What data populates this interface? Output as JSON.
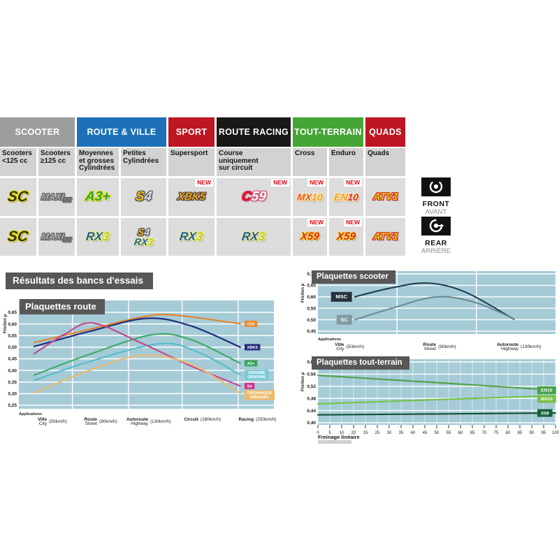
{
  "page": {
    "background": "#ffffff",
    "results_banner": "Résultats des bancs d'essais"
  },
  "colors": {
    "band_gray": "#9d9d9c",
    "band_blue": "#1d71b8",
    "band_red": "#be1622",
    "band_black": "#181816",
    "band_green": "#45a535",
    "subheader_bg": "#d2d2d2",
    "cell_bg": "#dcdcdc",
    "chart_bg": "#a5cbd7",
    "title_box": "#575756",
    "new_red": "#e30613"
  },
  "table": {
    "new_label": "NEW",
    "categories": [
      {
        "label": "SCOOTER",
        "color_key": "band_gray",
        "span": 2
      },
      {
        "label": "ROUTE & VILLE",
        "color_key": "band_blue",
        "span": 2
      },
      {
        "label": "SPORT",
        "color_key": "band_red",
        "span": 1
      },
      {
        "label": "ROUTE RACING",
        "color_key": "band_black",
        "span": 1
      },
      {
        "label": "TOUT-TERRAIN",
        "color_key": "band_green",
        "span": 2
      },
      {
        "label": "QUADS",
        "color_key": "band_red",
        "span": 1
      }
    ],
    "subheaders": [
      "Scooters\n<125 cc",
      "Scooters\n≥125 cc",
      "Moyennes\net grosses\nCylindrées",
      "Petites\nCylindrées",
      "Supersport",
      "Course\nuniquement\nsur circuit",
      "Cross",
      "Enduro",
      "Quads"
    ],
    "rows": [
      {
        "position": "front",
        "cells": [
          {
            "new": false,
            "logos": [
              {
                "style": "sc",
                "halo": "#e6de00",
                "parts": [
                  {
                    "t": "SC",
                    "c": "#33331c"
                  }
                ]
              }
            ]
          },
          {
            "new": false,
            "logos": [
              {
                "style": "maxisc",
                "halo": "#5a5a5a",
                "parts": [
                  {
                    "t": "MAXI",
                    "c": "#b0b0b0"
                  },
                  {
                    "t": "SC",
                    "c": "#8f8f8f"
                  }
                ]
              }
            ]
          },
          {
            "new": false,
            "logos": [
              {
                "style": "a3",
                "halo": "#ece400",
                "parts": [
                  {
                    "t": "A3+",
                    "c": "#2f9e41"
                  }
                ]
              }
            ]
          },
          {
            "new": false,
            "logos": [
              {
                "style": "s4",
                "halo": "#4a4a55",
                "parts": [
                  {
                    "t": "S",
                    "c": "#f2b919"
                  },
                  {
                    "t": "4",
                    "c": "#dfe0ea"
                  }
                ]
              }
            ]
          },
          {
            "new": true,
            "logos": [
              {
                "style": "xbk5",
                "halo": "#403f3d",
                "parts": [
                  {
                    "t": "XBK5",
                    "c": "#f2a51c"
                  }
                ]
              }
            ]
          },
          {
            "new": true,
            "logos": [
              {
                "style": "c59",
                "halo": "#d9486b",
                "parts": [
                  {
                    "t": "C",
                    "c": "#e00f2e"
                  },
                  {
                    "t": "59",
                    "c": "#ffffff"
                  }
                ]
              }
            ]
          },
          {
            "new": true,
            "logos": [
              {
                "style": "mx10",
                "halo": "#ffe9c4",
                "parts": [
                  {
                    "t": "MX",
                    "c": "#e8581c"
                  },
                  {
                    "t": "10",
                    "c": "#f2a01c"
                  }
                ]
              }
            ]
          },
          {
            "new": true,
            "logos": [
              {
                "style": "en10",
                "halo": "#ffe9c4",
                "parts": [
                  {
                    "t": "EN",
                    "c": "#f2a01c"
                  },
                  {
                    "t": "10",
                    "c": "#e02818"
                  }
                ]
              }
            ]
          },
          {
            "new": false,
            "logos": [
              {
                "style": "atv1",
                "halo": "#d02818",
                "parts": [
                  {
                    "t": "ATV1",
                    "c": "#f2c01c"
                  }
                ]
              }
            ]
          }
        ]
      },
      {
        "position": "rear",
        "cells": [
          {
            "new": false,
            "logos": [
              {
                "style": "sc",
                "halo": "#e6de00",
                "parts": [
                  {
                    "t": "SC",
                    "c": "#33331c"
                  }
                ]
              }
            ]
          },
          {
            "new": false,
            "logos": [
              {
                "style": "maxisc",
                "halo": "#5a5a5a",
                "parts": [
                  {
                    "t": "MAXI",
                    "c": "#b0b0b0"
                  },
                  {
                    "t": "SC",
                    "c": "#8f8f8f"
                  }
                ]
              }
            ]
          },
          {
            "new": false,
            "logos": [
              {
                "style": "rx3",
                "halo": "#f2ef86",
                "parts": [
                  {
                    "t": "RX",
                    "c": "#1d5ca8"
                  },
                  {
                    "t": "3",
                    "c": "#bed01e"
                  }
                ]
              }
            ]
          },
          {
            "new": false,
            "logos": [
              {
                "style": "s4s",
                "halo": "#4a4a55",
                "parts": [
                  {
                    "t": "S",
                    "c": "#f2b919"
                  },
                  {
                    "t": "4",
                    "c": "#dfe0ea"
                  }
                ]
              },
              {
                "style": "rx3s",
                "halo": "#f2ef86",
                "parts": [
                  {
                    "t": "RX",
                    "c": "#1d5ca8"
                  },
                  {
                    "t": "3",
                    "c": "#bed01e"
                  }
                ]
              }
            ]
          },
          {
            "new": false,
            "logos": [
              {
                "style": "rx3",
                "halo": "#f2ef86",
                "parts": [
                  {
                    "t": "RX",
                    "c": "#1d5ca8"
                  },
                  {
                    "t": "3",
                    "c": "#bed01e"
                  }
                ]
              }
            ]
          },
          {
            "new": false,
            "logos": [
              {
                "style": "rx3",
                "halo": "#f2ef86",
                "parts": [
                  {
                    "t": "RX",
                    "c": "#1d5ca8"
                  },
                  {
                    "t": "3",
                    "c": "#bed01e"
                  }
                ]
              }
            ]
          },
          {
            "new": true,
            "logos": [
              {
                "style": "x59",
                "halo": "#f2d84a",
                "parts": [
                  {
                    "t": "X59",
                    "c": "#e02818"
                  }
                ]
              }
            ]
          },
          {
            "new": true,
            "logos": [
              {
                "style": "x59",
                "halo": "#f2d84a",
                "parts": [
                  {
                    "t": "X59",
                    "c": "#e02818"
                  }
                ]
              }
            ]
          },
          {
            "new": false,
            "logos": [
              {
                "style": "atv1",
                "halo": "#d02818",
                "parts": [
                  {
                    "t": "ATV1",
                    "c": "#f2c01c"
                  }
                ]
              }
            ]
          }
        ]
      }
    ],
    "front_marker": {
      "label": "FRONT",
      "sub": "AVANT"
    },
    "rear_marker": {
      "label": "REAR",
      "sub": "ARRIÈRE"
    }
  },
  "chart_data": [
    {
      "id": "route",
      "type": "line",
      "title": "Plaquettes route",
      "ylabel": "Friction µ",
      "xlabel": "Applications",
      "ylim": [
        0.25,
        0.65
      ],
      "grid": true,
      "legend_position": "right",
      "y_ticks": [
        "0,65",
        "0,60",
        "0,55",
        "0,50",
        "0,45",
        "0,40",
        "0,35",
        "0,30",
        "0,25"
      ],
      "x_stations": [
        {
          "fr": "Ville",
          "en": "City",
          "speed": "(50km/h)",
          "f": 0.077
        },
        {
          "fr": "Route",
          "en": "Street",
          "speed": "(90km/h)",
          "f": 0.274
        },
        {
          "fr": "Autoroute",
          "en": "Highway",
          "speed": "(130km/h)",
          "f": 0.474
        },
        {
          "fr": "Circuit",
          "en": "",
          "speed": "(180km/h)",
          "f": 0.671
        },
        {
          "fr": "Racing",
          "en": "",
          "speed": "(250km/h)",
          "f": 0.888
        }
      ],
      "series": [
        {
          "name": "C59",
          "color": "#e2852f",
          "badge": {
            "bg": "#ef8a2c",
            "lines": [
              "C59"
            ]
          },
          "points": [
            [
              0.06,
              0.52
            ],
            [
              0.274,
              0.576
            ],
            [
              0.474,
              0.628
            ],
            [
              0.6,
              0.639
            ],
            [
              0.868,
              0.601
            ]
          ]
        },
        {
          "name": "XBK5",
          "color": "#232e7d",
          "badge": {
            "bg": "#232e7d",
            "lines": [
              "XBK5"
            ]
          },
          "points": [
            [
              0.06,
              0.503
            ],
            [
              0.274,
              0.567
            ],
            [
              0.5,
              0.624
            ],
            [
              0.671,
              0.593
            ],
            [
              0.868,
              0.5
            ]
          ]
        },
        {
          "name": "A3+",
          "color": "#41ab6b",
          "badge": {
            "bg": "#3aa35c",
            "lines": [
              "A3+"
            ]
          },
          "points": [
            [
              0.06,
              0.38
            ],
            [
              0.274,
              0.468
            ],
            [
              0.52,
              0.553
            ],
            [
              0.671,
              0.534
            ],
            [
              0.868,
              0.431
            ]
          ]
        },
        {
          "name": "ORIGINE",
          "color": "#56bdc9",
          "badge": {
            "bg": "#79cbd6",
            "lines": [
              "ORIGINE",
              "GENUINE"
            ]
          },
          "points": [
            [
              0.06,
              0.357
            ],
            [
              0.274,
              0.437
            ],
            [
              0.55,
              0.515
            ],
            [
              0.7,
              0.48
            ],
            [
              0.868,
              0.381
            ]
          ]
        },
        {
          "name": "S4",
          "color": "#c4488f",
          "badge": {
            "bg": "#d23090",
            "lines": [
              "S4"
            ]
          },
          "points": [
            [
              0.06,
              0.472
            ],
            [
              0.18,
              0.556
            ],
            [
              0.29,
              0.604
            ],
            [
              0.474,
              0.521
            ],
            [
              0.671,
              0.421
            ],
            [
              0.868,
              0.333
            ]
          ]
        },
        {
          "name": "ORGANIQUE",
          "color": "#e9bc74",
          "badge": {
            "bg": "#efb964",
            "lines": [
              "ORGANIQUE",
              "ORGANIC"
            ]
          },
          "points": [
            [
              0.06,
              0.303
            ],
            [
              0.274,
              0.399
            ],
            [
              0.48,
              0.464
            ],
            [
              0.671,
              0.428
            ],
            [
              0.868,
              0.301
            ]
          ]
        }
      ]
    },
    {
      "id": "scooter",
      "type": "line",
      "title": "Plaquettes scooter",
      "ylabel": "Friction µ",
      "xlabel": "Applications",
      "ylim": [
        0.45,
        0.7
      ],
      "grid": true,
      "legend_position": "line-start",
      "y_ticks": [
        "0,70",
        "0,65",
        "0,60",
        "0,55",
        "0,50",
        "0,45"
      ],
      "x_stations": [
        {
          "fr": "Ville",
          "en": "City",
          "speed": "(50km/h)",
          "f": 0.075
        },
        {
          "fr": "Route",
          "en": "Street",
          "speed": "(90km/h)",
          "f": 0.462
        },
        {
          "fr": "Autoroute",
          "en": "Highway",
          "speed": "(130km/h)",
          "f": 0.809
        }
      ],
      "series": [
        {
          "name": "MSC",
          "color": "#203d4d",
          "badge": {
            "bg": "#26323e",
            "lines": [
              "MSC"
            ]
          },
          "points": [
            [
              0.155,
              0.6
            ],
            [
              0.3,
              0.637
            ],
            [
              0.46,
              0.66
            ],
            [
              0.62,
              0.621
            ],
            [
              0.825,
              0.502
            ]
          ]
        },
        {
          "name": "SC",
          "color": "#6b8b96",
          "badge": {
            "bg": "#8399a5",
            "lines": [
              "SC"
            ]
          },
          "points": [
            [
              0.155,
              0.5
            ],
            [
              0.32,
              0.553
            ],
            [
              0.5,
              0.6
            ],
            [
              0.66,
              0.576
            ],
            [
              0.825,
              0.504
            ]
          ]
        }
      ]
    },
    {
      "id": "tout-terrain",
      "type": "line",
      "title": "Plaquettes tout-terrain",
      "ylabel": "Friction µ",
      "xlabel": "Freinage linéaire",
      "ylim": [
        0.4,
        0.6
      ],
      "xlim": [
        0,
        100
      ],
      "grid": true,
      "legend_position": "right",
      "y_ticks": [
        "0,60",
        "0,56",
        "0,52",
        "0,48",
        "0,44",
        "0,40"
      ],
      "x_tick_labels": [
        "0",
        "5",
        "10",
        "20",
        "15",
        "25",
        "30",
        "35",
        "40",
        "45",
        "50",
        "55",
        "60",
        "65",
        "70",
        "75",
        "80",
        "85",
        "90",
        "95",
        "100"
      ],
      "series": [
        {
          "name": "EN10",
          "color": "#53a047",
          "badge": {
            "bg": "#43a147",
            "lines": [
              "EN10"
            ]
          },
          "points": [
            [
              0,
              0.556
            ],
            [
              0.5,
              0.532
            ],
            [
              1,
              0.507
            ]
          ]
        },
        {
          "name": "MX10",
          "color": "#74c246",
          "badge": {
            "bg": "#77c143",
            "lines": [
              "MX10"
            ]
          },
          "points": [
            [
              0,
              0.462
            ],
            [
              0.5,
              0.476
            ],
            [
              1,
              0.489
            ]
          ]
        },
        {
          "name": "X59",
          "color": "#14522f",
          "badge": {
            "bg": "#176138",
            "lines": [
              "X59"
            ]
          },
          "points": [
            [
              0,
              0.426
            ],
            [
              1,
              0.432
            ]
          ]
        }
      ]
    }
  ]
}
